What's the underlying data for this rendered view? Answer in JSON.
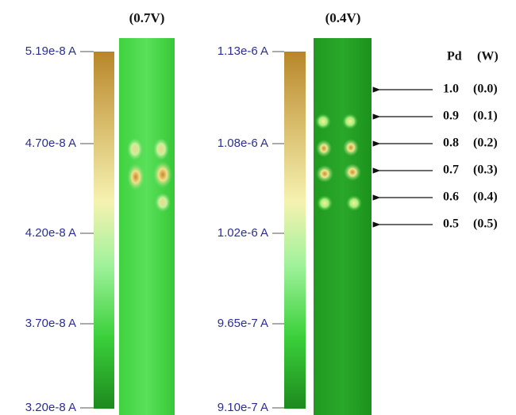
{
  "panels": [
    {
      "title": "(0.7V)",
      "colorbar_labels": [
        "5.19e-8 A",
        "4.70e-8 A",
        "4.20e-8 A",
        "3.70e-8 A",
        "3.20e-8 A"
      ]
    },
    {
      "title": "(0.4V)",
      "colorbar_labels": [
        "1.13e-6 A",
        "1.08e-6 A",
        "1.02e-6 A",
        "9.65e-7 A",
        "9.10e-7 A"
      ]
    }
  ],
  "legend": {
    "header": [
      "Pd",
      "(W)"
    ],
    "rows": [
      [
        "1.0",
        "(0.0)"
      ],
      [
        "0.9",
        "(0.1)"
      ],
      [
        "0.8",
        "(0.2)"
      ],
      [
        "0.7",
        "(0.3)"
      ],
      [
        "0.6",
        "(0.4)"
      ],
      [
        "0.5",
        "(0.5)"
      ]
    ]
  }
}
